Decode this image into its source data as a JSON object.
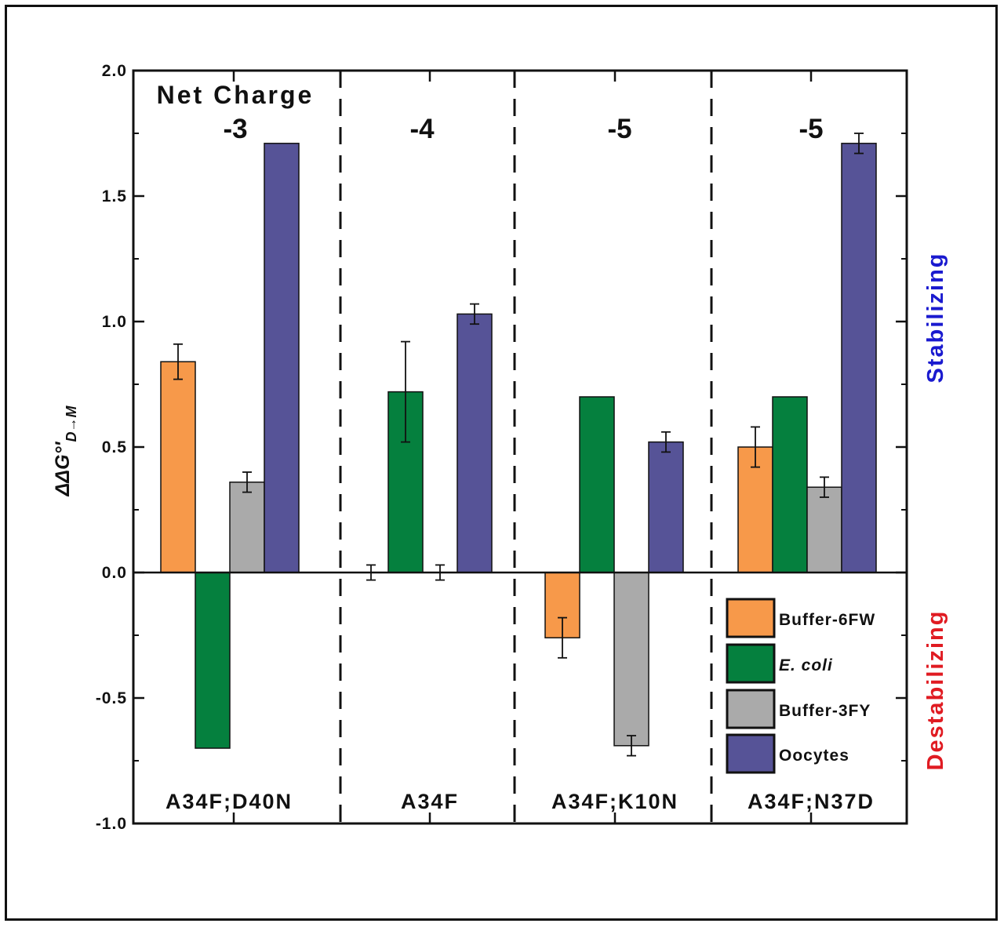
{
  "chart_data": {
    "type": "bar",
    "ylabel_main": "ΔΔG°'",
    "ylabel_sub": "D→M",
    "ylim": [
      -1.0,
      2.0
    ],
    "yticks": [
      2.0,
      1.5,
      1.0,
      0.5,
      0.0,
      -0.5,
      -1.0
    ],
    "ytick_labels": [
      "2.0",
      "1.5",
      "1.0",
      "0.5",
      "0.0",
      "-0.5",
      "-1.0"
    ],
    "net_charge_title": "Net Charge",
    "categories": [
      "A34F;D40N",
      "A34F",
      "A34F;K10N",
      "A34F;N37D"
    ],
    "net_charges": [
      "-3",
      "-4",
      "-5",
      "-5"
    ],
    "series": [
      {
        "name": "Buffer-6FW",
        "color": "#F7994A",
        "italic": false,
        "values": [
          0.84,
          0.0,
          -0.26,
          0.5
        ],
        "errors": [
          0.07,
          0.03,
          0.08,
          0.08
        ]
      },
      {
        "name": "E. coli",
        "color": "#05803E",
        "italic": true,
        "values": [
          -0.7,
          0.72,
          0.7,
          0.7
        ],
        "errors": [
          null,
          0.2,
          null,
          null
        ]
      },
      {
        "name": "Buffer-3FY",
        "color": "#AAAAAA",
        "italic": false,
        "values": [
          0.36,
          0.0,
          -0.69,
          0.34
        ],
        "errors": [
          0.04,
          0.03,
          0.04,
          0.04
        ]
      },
      {
        "name": "Oocytes",
        "color": "#565397",
        "italic": false,
        "values": [
          1.71,
          1.03,
          0.52,
          1.71
        ],
        "errors": [
          null,
          0.04,
          0.04,
          0.04
        ]
      }
    ],
    "side_labels": [
      {
        "text": "Stabilizing",
        "color": "#1A1ACF"
      },
      {
        "text": "Destabilizing",
        "color": "#E01B22"
      }
    ],
    "legend_position": "bottom-right"
  }
}
